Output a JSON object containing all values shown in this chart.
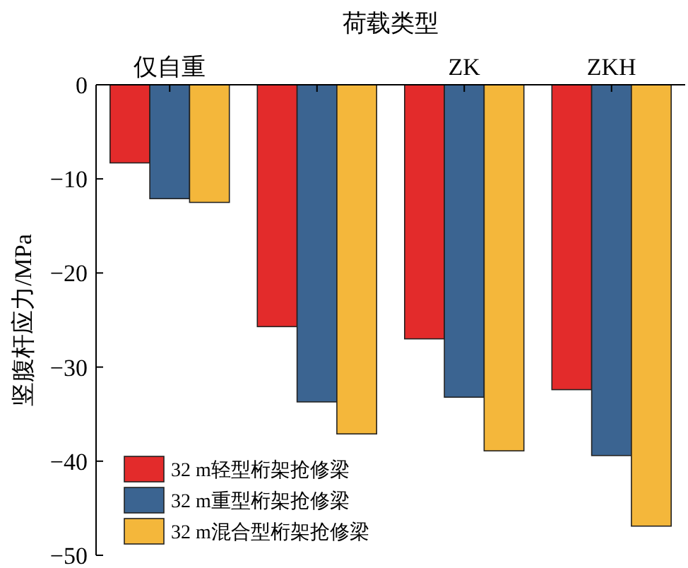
{
  "chart_data": {
    "type": "bar",
    "xlabel": "荷载类型",
    "ylabel": "竖腹杆应力/MPa",
    "categories": [
      "仅自重",
      null,
      "ZK",
      "ZKH"
    ],
    "series": [
      {
        "name": "32 m轻型桁架抢修梁",
        "color": "#e32b2b",
        "values": [
          -8.3,
          -25.7,
          -27.0,
          -32.4
        ]
      },
      {
        "name": "32 m重型桁架抢修梁",
        "color": "#3b6491",
        "values": [
          -12.1,
          -33.7,
          -33.2,
          -39.4
        ]
      },
      {
        "name": "32 m混合型桁架抢修梁",
        "color": "#f4b73b",
        "values": [
          -12.5,
          -37.1,
          -38.9,
          -46.9
        ]
      }
    ],
    "ylim": [
      -50,
      0
    ],
    "yticks": [
      0,
      {
        "value": -10,
        "label": "−10"
      },
      {
        "value": -20,
        "label": "−20"
      },
      {
        "value": -30,
        "label": "−30"
      },
      {
        "value": -40,
        "label": "−40"
      },
      {
        "value": -50,
        "label": "−50"
      }
    ],
    "grid": false,
    "legend": "bottom left"
  }
}
